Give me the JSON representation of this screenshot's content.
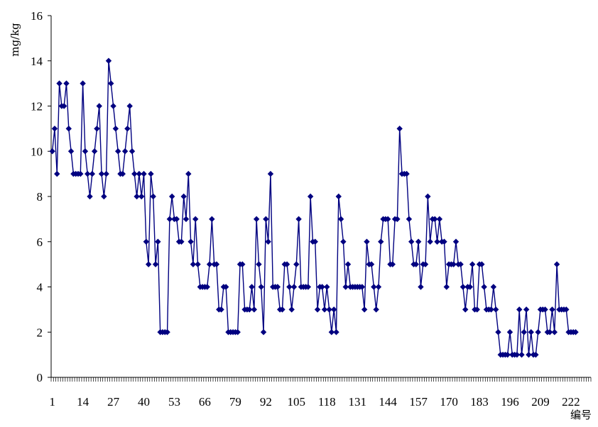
{
  "chart_data": {
    "type": "line",
    "title": "",
    "xlabel": "编号",
    "ylabel": "mg/kg",
    "ylim": [
      0,
      16
    ],
    "y_ticks": [
      0,
      2,
      4,
      6,
      8,
      10,
      12,
      14,
      16
    ],
    "x_range": [
      1,
      230
    ],
    "x_tick_labels": [
      "1",
      "14",
      "27",
      "40",
      "53",
      "66",
      "79",
      "92",
      "105",
      "118",
      "131",
      "144",
      "157",
      "170",
      "183",
      "196",
      "209",
      "222"
    ],
    "grid": false,
    "legend": "none",
    "marker": "diamond",
    "color": "#000080",
    "values": [
      10,
      11,
      9,
      13,
      12,
      12,
      13,
      11,
      10,
      9,
      9,
      9,
      9,
      13,
      10,
      9,
      8,
      9,
      10,
      11,
      12,
      9,
      8,
      9,
      14,
      13,
      12,
      11,
      10,
      9,
      9,
      10,
      11,
      12,
      10,
      9,
      8,
      9,
      8,
      9,
      6,
      5,
      9,
      8,
      5,
      6,
      2,
      2,
      2,
      2,
      7,
      8,
      7,
      7,
      6,
      6,
      8,
      7,
      9,
      6,
      5,
      7,
      5,
      4,
      4,
      4,
      4,
      5,
      7,
      5,
      5,
      3,
      3,
      4,
      4,
      2,
      2,
      2,
      2,
      2,
      5,
      5,
      3,
      3,
      3,
      4,
      3,
      7,
      5,
      4,
      2,
      7,
      6,
      9,
      4,
      4,
      4,
      3,
      3,
      5,
      5,
      4,
      3,
      4,
      5,
      7,
      4,
      4,
      4,
      4,
      8,
      6,
      6,
      3,
      4,
      4,
      3,
      4,
      3,
      2,
      3,
      2,
      8,
      7,
      6,
      4,
      5,
      4,
      4,
      4,
      4,
      4,
      4,
      3,
      6,
      5,
      5,
      4,
      3,
      4,
      6,
      7,
      7,
      7,
      5,
      5,
      7,
      7,
      11,
      9,
      9,
      9,
      7,
      6,
      5,
      5,
      6,
      4,
      5,
      5,
      8,
      6,
      7,
      7,
      6,
      7,
      6,
      6,
      4,
      5,
      5,
      5,
      6,
      5,
      5,
      4,
      3,
      4,
      4,
      5,
      3,
      3,
      5,
      5,
      4,
      3,
      3,
      3,
      4,
      3,
      2,
      1,
      1,
      1,
      1,
      2,
      1,
      1,
      1,
      3,
      1,
      2,
      3,
      1,
      2,
      1,
      1,
      2,
      3,
      3,
      3,
      2,
      2,
      3,
      2,
      5,
      3,
      3,
      3,
      3,
      2,
      2,
      2,
      2
    ]
  }
}
